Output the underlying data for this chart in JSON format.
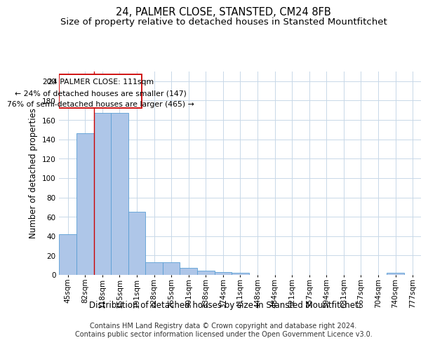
{
  "title1": "24, PALMER CLOSE, STANSTED, CM24 8FB",
  "title2": "Size of property relative to detached houses in Stansted Mountfitchet",
  "xlabel": "Distribution of detached houses by size in Stansted Mountfitchet",
  "ylabel": "Number of detached properties",
  "footer1": "Contains HM Land Registry data © Crown copyright and database right 2024.",
  "footer2": "Contains public sector information licensed under the Open Government Licence v3.0.",
  "categories": [
    "45sqm",
    "82sqm",
    "118sqm",
    "155sqm",
    "191sqm",
    "228sqm",
    "265sqm",
    "301sqm",
    "338sqm",
    "374sqm",
    "411sqm",
    "448sqm",
    "484sqm",
    "521sqm",
    "557sqm",
    "594sqm",
    "631sqm",
    "667sqm",
    "704sqm",
    "740sqm",
    "777sqm"
  ],
  "values": [
    42,
    146,
    167,
    167,
    65,
    13,
    13,
    7,
    4,
    3,
    2,
    0,
    0,
    0,
    0,
    0,
    0,
    0,
    0,
    2,
    0
  ],
  "bar_color": "#aec6e8",
  "bar_edge_color": "#5a9fd4",
  "annotation_text_line1": "24 PALMER CLOSE: 111sqm",
  "annotation_text_line2": "← 24% of detached houses are smaller (147)",
  "annotation_text_line3": "76% of semi-detached houses are larger (465) →",
  "box_color": "#cc0000",
  "vertical_line_color": "#cc0000",
  "ylim": [
    0,
    210
  ],
  "yticks": [
    0,
    20,
    40,
    60,
    80,
    100,
    120,
    140,
    160,
    180,
    200
  ],
  "background_color": "#ffffff",
  "grid_color": "#c8d8e8",
  "title_fontsize": 10.5,
  "subtitle_fontsize": 9.5,
  "axis_label_fontsize": 8.5,
  "tick_fontsize": 7.5,
  "footer_fontsize": 7
}
